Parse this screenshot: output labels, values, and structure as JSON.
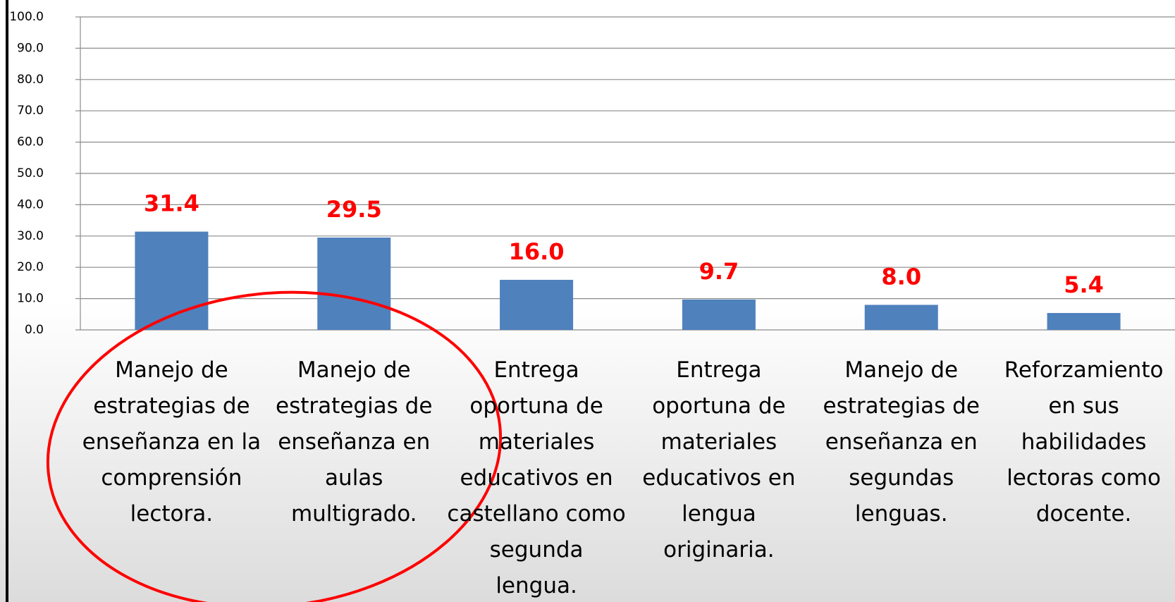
{
  "chart_data": {
    "type": "bar",
    "categories": [
      "Manejo de estrategias de enseñanza en la comprensión lectora.",
      "Manejo de estrategias de enseñanza en aulas multigrado.",
      "Entrega oportuna de materiales educativos en castellano como segunda lengua.",
      "Entrega oportuna de materiales educativos en lengua originaria.",
      "Manejo de estrategias de enseñanza en segundas lenguas.",
      "Reforzamiento en sus habilidades lectoras como docente."
    ],
    "values": [
      31.4,
      29.5,
      16,
      9.7,
      8,
      5.4
    ],
    "value_labels": [
      "31.4",
      "29.5",
      "16.0",
      "9.7",
      "8.0",
      "5.4"
    ],
    "color": "#4f81bd",
    "label_color": "#ff0000",
    "ylim": [
      0,
      100
    ],
    "yticks": [
      {
        "value": 0,
        "label": "0.0"
      },
      {
        "value": 10,
        "label": "10.0"
      },
      {
        "value": 20,
        "label": "20.0"
      },
      {
        "value": 30,
        "label": "30.0"
      },
      {
        "value": 40,
        "label": "40.0"
      },
      {
        "value": 50,
        "label": "50.0"
      },
      {
        "value": 60,
        "label": "60.0"
      },
      {
        "value": 70,
        "label": "70.0"
      },
      {
        "value": 80,
        "label": "80.0"
      },
      {
        "value": 90,
        "label": "90.0"
      },
      {
        "value": 100,
        "label": "100.0"
      }
    ],
    "grid": true
  }
}
